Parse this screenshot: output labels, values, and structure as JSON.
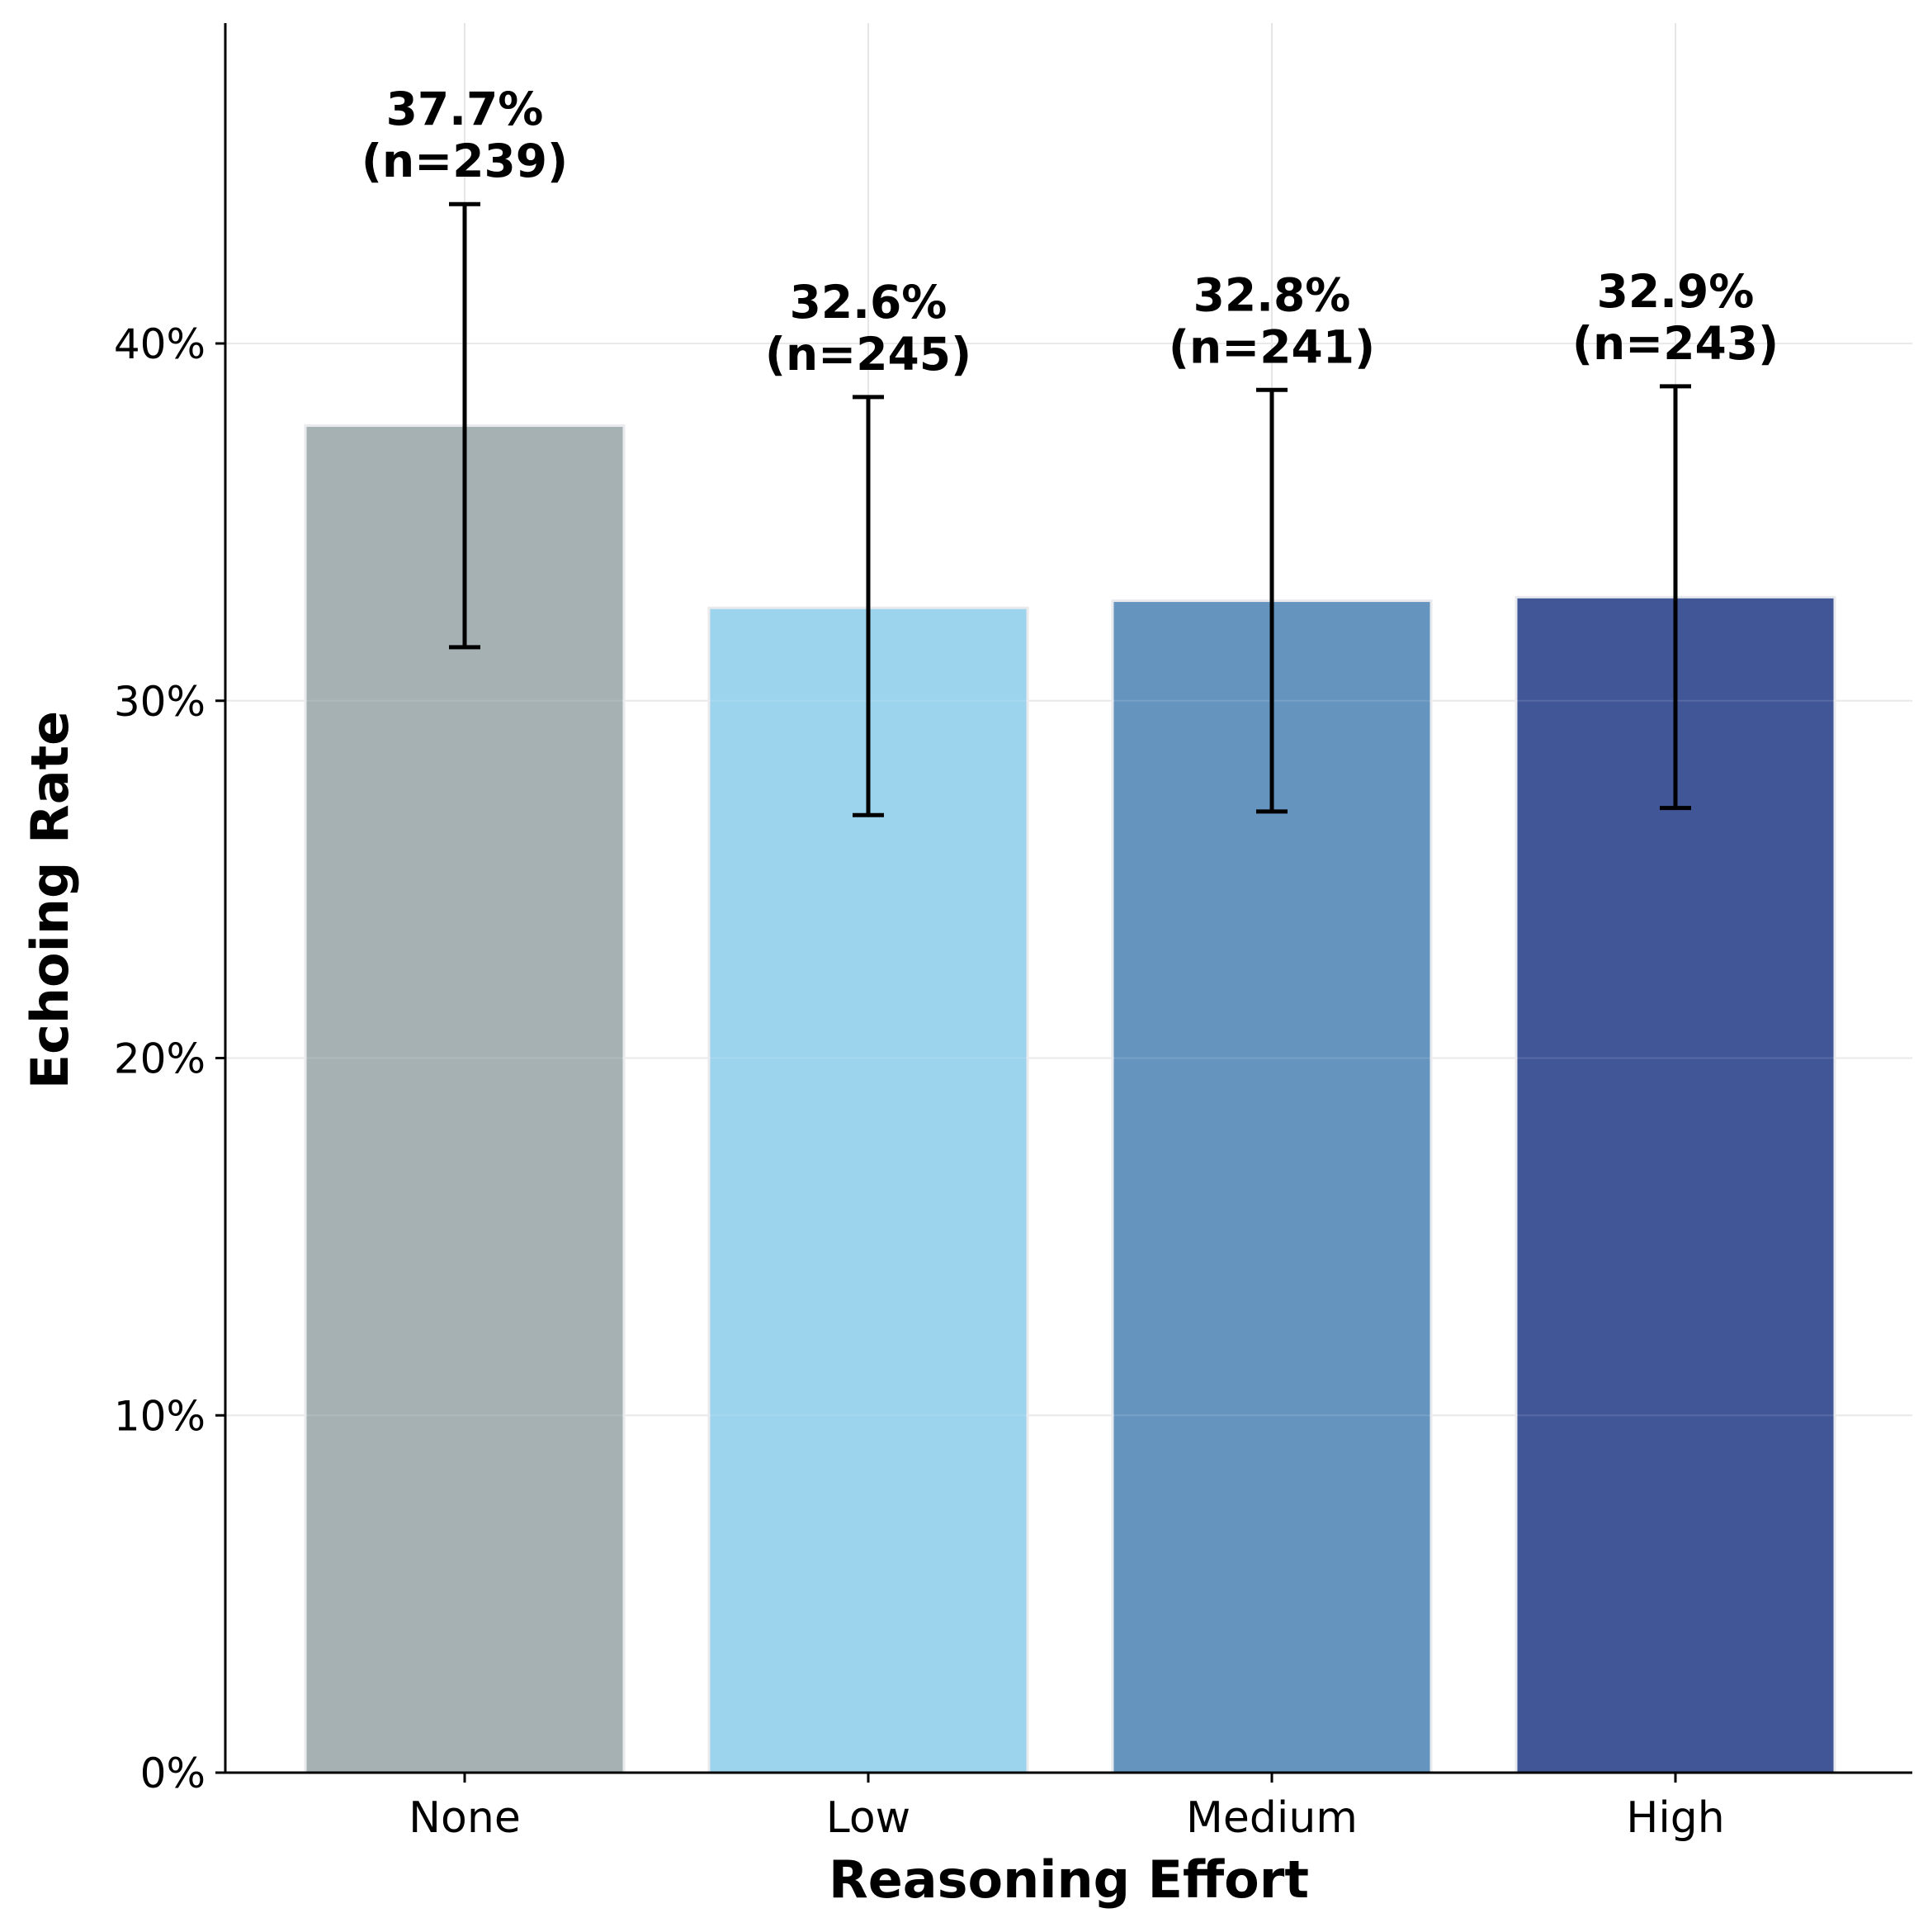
{
  "chart_data": {
    "type": "bar",
    "title": "",
    "xlabel": "Reasoning Effort",
    "ylabel": "Echoing Rate",
    "categories": [
      "None",
      "Low",
      "Medium",
      "High"
    ],
    "values": [
      37.7,
      32.6,
      32.8,
      32.9
    ],
    "error_low": [
      31.5,
      26.8,
      26.9,
      27.0
    ],
    "error_high": [
      43.9,
      38.5,
      38.7,
      38.8
    ],
    "sample_sizes": [
      239,
      245,
      241,
      243
    ],
    "value_labels": [
      "37.7%",
      "32.6%",
      "32.8%",
      "32.9%"
    ],
    "n_labels": [
      "(n=239)",
      "(n=245)",
      "(n=241)",
      "(n=243)"
    ],
    "colors": [
      "#a5b1b3",
      "#9cd3ed",
      "#6594bf",
      "#415697"
    ],
    "ylim": [
      0,
      49
    ],
    "yticks": [
      0,
      10,
      20,
      30,
      40
    ],
    "ytick_labels": [
      "0%",
      "10%",
      "20%",
      "30%",
      "40%"
    ],
    "grid": true,
    "legend": "none"
  }
}
